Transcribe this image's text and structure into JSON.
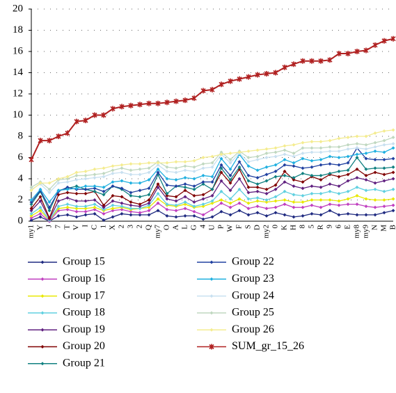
{
  "chart_data": {
    "type": "line",
    "categories": [
      "my1",
      "Y",
      "J",
      "7",
      "T",
      "V",
      "I",
      "C",
      "1",
      "X",
      "2",
      "3",
      "2",
      "Q",
      "my7",
      "O",
      "A",
      "L",
      "G",
      "4",
      "U",
      "P",
      "W",
      "F",
      "S",
      "D",
      "my2",
      "0",
      "K",
      "H",
      "8",
      "5",
      "R",
      "9",
      "6",
      "E",
      "my8",
      "my9",
      "N",
      "M",
      "B"
    ],
    "ylim": [
      0,
      20
    ],
    "yticks": [
      0,
      2,
      4,
      6,
      8,
      10,
      12,
      14,
      16,
      18,
      20
    ],
    "grid": true,
    "legend": "bottom",
    "series": [
      {
        "name": "Group 15",
        "color": "#1f2a80",
        "values": [
          0.1,
          0.4,
          0.0,
          0.5,
          0.6,
          0.4,
          0.6,
          0.7,
          0.1,
          0.4,
          0.7,
          0.6,
          0.6,
          0.6,
          1.0,
          0.5,
          0.4,
          0.5,
          0.5,
          0.2,
          0.4,
          0.9,
          0.6,
          1.0,
          0.6,
          0.8,
          0.5,
          0.8,
          0.6,
          0.4,
          0.5,
          0.7,
          0.6,
          1.0,
          0.6,
          0.7,
          0.6,
          0.6,
          0.6,
          0.8,
          1.0
        ]
      },
      {
        "name": "Group 16",
        "color": "#c040c0",
        "values": [
          0.3,
          0.7,
          0.0,
          1.0,
          1.1,
          0.9,
          0.9,
          1.1,
          0.7,
          1.0,
          1.1,
          0.9,
          0.8,
          1.0,
          1.7,
          1.1,
          1.0,
          1.2,
          0.9,
          0.6,
          1.1,
          1.7,
          1.3,
          1.7,
          1.2,
          1.4,
          1.2,
          1.3,
          1.6,
          1.3,
          1.3,
          1.5,
          1.3,
          1.6,
          1.5,
          1.6,
          1.6,
          1.4,
          1.3,
          1.4,
          1.5
        ]
      },
      {
        "name": "Group 17",
        "color": "#e8e800",
        "values": [
          0.5,
          1.0,
          0.1,
          1.2,
          1.3,
          1.2,
          1.2,
          1.3,
          1.0,
          1.2,
          1.3,
          1.1,
          1.2,
          1.3,
          2.1,
          1.5,
          1.4,
          1.6,
          1.3,
          1.4,
          1.7,
          2.0,
          1.7,
          2.1,
          1.7,
          1.9,
          1.8,
          1.9,
          2.0,
          1.8,
          1.8,
          2.0,
          2.0,
          2.0,
          1.9,
          2.1,
          2.4,
          2.1,
          2.0,
          2.0,
          2.1
        ]
      },
      {
        "name": "Group 18",
        "color": "#60d0e0",
        "values": [
          0.7,
          1.3,
          0.1,
          1.4,
          1.6,
          1.4,
          1.4,
          1.6,
          1.1,
          1.5,
          1.4,
          1.2,
          1.2,
          1.5,
          2.6,
          1.6,
          1.5,
          1.8,
          1.4,
          1.6,
          1.9,
          2.8,
          2.1,
          3.0,
          2.1,
          2.2,
          2.0,
          2.3,
          2.8,
          2.5,
          2.4,
          2.6,
          2.6,
          2.8,
          2.6,
          2.8,
          3.2,
          2.9,
          3.0,
          2.8,
          3.0
        ]
      },
      {
        "name": "Group 19",
        "color": "#602080",
        "values": [
          1.0,
          1.9,
          0.2,
          1.9,
          2.2,
          1.9,
          1.9,
          2.0,
          1.3,
          1.9,
          1.7,
          1.5,
          1.4,
          1.7,
          3.2,
          2.1,
          1.9,
          2.3,
          1.8,
          2.1,
          2.4,
          3.8,
          2.9,
          4.0,
          2.7,
          2.8,
          2.6,
          3.0,
          3.7,
          3.3,
          3.1,
          3.3,
          3.2,
          3.5,
          3.3,
          3.8,
          4.1,
          3.9,
          3.6,
          3.8,
          4.0
        ]
      },
      {
        "name": "Group 20",
        "color": "#800000",
        "values": [
          1.2,
          2.3,
          0.3,
          2.5,
          2.7,
          2.6,
          2.6,
          2.8,
          1.5,
          2.4,
          2.3,
          1.8,
          1.6,
          2.0,
          3.5,
          2.4,
          2.3,
          2.9,
          2.4,
          2.5,
          3.0,
          4.6,
          3.6,
          4.9,
          3.2,
          3.2,
          3.0,
          3.4,
          4.7,
          3.9,
          3.7,
          4.2,
          3.9,
          4.4,
          4.2,
          4.4,
          4.9,
          4.3,
          4.6,
          4.4,
          4.6
        ]
      },
      {
        "name": "Group 21",
        "color": "#108080",
        "values": [
          1.6,
          2.8,
          1.0,
          2.9,
          3.1,
          3.3,
          3.0,
          2.8,
          2.5,
          3.3,
          3.0,
          2.4,
          2.3,
          2.5,
          4.4,
          2.6,
          3.3,
          3.2,
          3.0,
          3.5,
          3.0,
          5.0,
          3.9,
          5.1,
          3.8,
          3.5,
          3.8,
          4.2,
          4.3,
          4.1,
          4.5,
          4.3,
          4.3,
          4.5,
          4.7,
          4.8,
          6.0,
          4.9,
          5.0,
          5.0,
          5.1
        ]
      },
      {
        "name": "Group 22",
        "color": "#2040a0",
        "values": [
          1.8,
          2.9,
          1.3,
          2.8,
          3.2,
          3.0,
          3.0,
          3.1,
          2.8,
          3.3,
          3.1,
          2.7,
          2.9,
          3.1,
          4.6,
          3.4,
          3.3,
          3.5,
          3.3,
          3.7,
          3.7,
          5.3,
          4.3,
          5.6,
          4.3,
          4.1,
          4.4,
          4.7,
          5.3,
          5.2,
          5.0,
          5.1,
          5.3,
          5.4,
          5.3,
          5.5,
          6.9,
          5.9,
          5.8,
          5.8,
          5.9
        ]
      },
      {
        "name": "Group 23",
        "color": "#20b0e0",
        "values": [
          2.0,
          3.0,
          1.8,
          2.9,
          3.0,
          3.1,
          3.3,
          3.3,
          3.2,
          3.7,
          3.8,
          3.6,
          3.6,
          3.9,
          4.9,
          4.0,
          3.9,
          4.1,
          4.0,
          4.3,
          4.2,
          5.9,
          4.9,
          6.3,
          5.2,
          4.8,
          5.1,
          5.3,
          5.8,
          5.5,
          5.9,
          5.7,
          5.8,
          6.1,
          6.0,
          6.1,
          6.3,
          6.4,
          6.6,
          6.5,
          6.9
        ]
      },
      {
        "name": "Group 24",
        "color": "#c8e0f0",
        "values": [
          3.0,
          3.5,
          2.7,
          3.6,
          3.7,
          3.9,
          4.0,
          4.1,
          4.2,
          4.5,
          4.6,
          4.4,
          4.4,
          4.6,
          5.3,
          4.7,
          4.6,
          4.8,
          4.7,
          5.0,
          5.1,
          6.3,
          5.5,
          6.4,
          5.6,
          5.8,
          6.0,
          6.1,
          6.3,
          6.1,
          6.4,
          6.5,
          6.5,
          6.6,
          6.6,
          6.8,
          6.9,
          6.8,
          7.0,
          7.2,
          7.3
        ]
      },
      {
        "name": "Group 25",
        "color": "#c0d8c0",
        "values": [
          3.2,
          3.7,
          3.0,
          3.9,
          4.0,
          4.3,
          4.3,
          4.4,
          4.5,
          4.8,
          5.0,
          4.8,
          4.9,
          5.0,
          5.6,
          5.1,
          5.0,
          5.2,
          5.1,
          5.4,
          5.5,
          6.5,
          5.8,
          6.6,
          6.0,
          6.1,
          6.4,
          6.5,
          6.7,
          6.4,
          6.9,
          6.9,
          6.9,
          7.0,
          7.0,
          7.2,
          7.3,
          7.2,
          7.4,
          7.6,
          7.9
        ]
      },
      {
        "name": "Group 26",
        "color": "#f4ec90",
        "values": [
          2.9,
          3.6,
          3.6,
          4.0,
          4.2,
          4.6,
          4.7,
          4.9,
          5.0,
          5.2,
          5.3,
          5.4,
          5.4,
          5.5,
          5.5,
          5.5,
          5.6,
          5.6,
          5.7,
          6.0,
          6.1,
          6.3,
          6.4,
          6.5,
          6.6,
          6.7,
          6.8,
          6.9,
          7.1,
          7.2,
          7.4,
          7.5,
          7.5,
          7.6,
          7.8,
          7.9,
          8.0,
          8.0,
          8.3,
          8.5,
          8.6
        ]
      },
      {
        "name": "SUM_gr_15_26",
        "color": "#b02020",
        "values": [
          5.8,
          7.6,
          7.6,
          8.0,
          8.3,
          9.4,
          9.5,
          10.0,
          10.0,
          10.6,
          10.8,
          10.9,
          11.0,
          11.1,
          11.1,
          11.2,
          11.3,
          11.4,
          11.6,
          12.3,
          12.4,
          12.9,
          13.2,
          13.4,
          13.6,
          13.8,
          13.9,
          14.0,
          14.5,
          14.8,
          15.1,
          15.1,
          15.1,
          15.2,
          15.8,
          15.8,
          16.0,
          16.1,
          16.6,
          17.0,
          17.2
        ]
      }
    ]
  }
}
